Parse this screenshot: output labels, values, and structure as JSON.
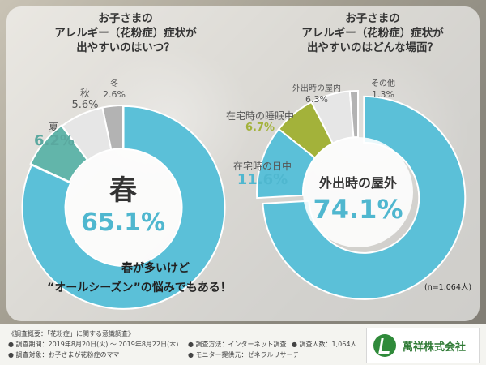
{
  "colors": {
    "primary": "#5bc0d8",
    "secondary_teal": "#62b5aa",
    "light_gray": "#e6e6e6",
    "mid_gray": "#b3b3b3",
    "olive_green": "#a3b23a",
    "value_blue": "#4fb7cf",
    "value_teal": "#5aa89f"
  },
  "left_chart": {
    "title_lines": [
      "お子さまの",
      "アレルギー（花粉症）症状が",
      "出やすいのはいつ？"
    ],
    "center_name": "春",
    "center_value": "65.1%",
    "label_summer_name": "夏",
    "label_summer_value": "6.2%",
    "label_autumn_name": "秋",
    "label_autumn_value": "5.6%",
    "label_winter_name": "冬",
    "label_winter_value": "2.6%",
    "note_line1": "春が多いけど",
    "note_line2": "“オールシーズン”の悩みでもある！"
  },
  "right_chart": {
    "title_lines": [
      "お子さまの",
      "アレルギー（花粉症）症状が",
      "出やすいのはどんな場面？"
    ],
    "center_name": "外出時の屋外",
    "center_value": "74.1%",
    "label_daytime_name": "在宅時の日中",
    "label_daytime_value": "11.6%",
    "label_sleep_name": "在宅時の睡眠中",
    "label_sleep_value": "6.7%",
    "label_indoor_name": "外出時の屋内",
    "label_indoor_value": "6.3%",
    "label_other_name": "その他",
    "label_other_value": "1.3%",
    "sample_note": "(n=1,064人)"
  },
  "chart_data": [
    {
      "type": "pie",
      "title": "お子さまのアレルギー（花粉症）症状が出やすいのはいつ？",
      "categories": [
        "春",
        "夏",
        "秋",
        "冬"
      ],
      "values": [
        65.1,
        6.2,
        5.6,
        2.6
      ],
      "unit": "%"
    },
    {
      "type": "pie",
      "title": "お子さまのアレルギー（花粉症）症状が出やすいのはどんな場面？",
      "categories": [
        "外出時の屋外",
        "在宅時の日中",
        "在宅時の睡眠中",
        "外出時の屋内",
        "その他"
      ],
      "values": [
        74.1,
        11.6,
        6.7,
        6.3,
        1.3
      ],
      "unit": "%",
      "sample_size": "n=1,064人"
    }
  ],
  "footer": {
    "heading": "《調査概要：「花粉症」に関する意識調査》",
    "period": "● 調査期間：2019年8月20日(火) ～ 2019年8月22日(木)",
    "method": "● 調査方法：インターネット調査",
    "count": "● 調査人数：1,064人",
    "target": "● 調査対象：お子さまが花粉症のママ",
    "monitor": "● モニター提供元：ゼネラルリサーチ",
    "logo_text": "萬祥株式会社"
  }
}
